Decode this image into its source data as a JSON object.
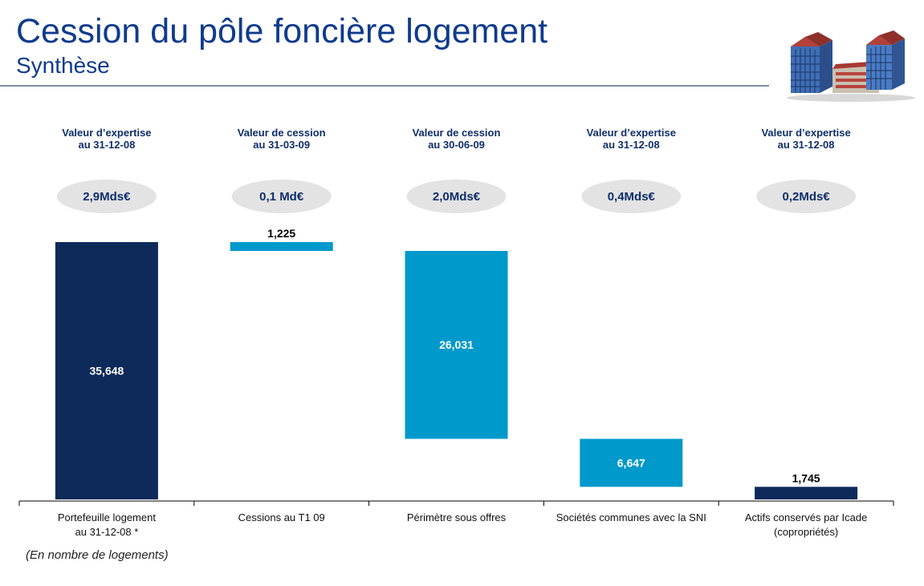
{
  "header": {
    "title": "Cession du pôle foncière logement",
    "subtitle": "Synthèse"
  },
  "footnote": "(En nombre de logements)",
  "colors": {
    "dark_navy": "#0d2a5a",
    "light_blue": "#0099cc",
    "pill_fill": "#e3e3e3",
    "title_blue": "#0f3b8c"
  },
  "icons": {
    "header_image": "building-illustration-icon"
  },
  "chart_data": {
    "type": "bar",
    "subtype": "waterfall",
    "unit": "nombre de logements",
    "ylim": [
      0,
      35648
    ],
    "grid": false,
    "categories": [
      [
        "Portefeuille logement",
        "au 31-12-08 *"
      ],
      [
        "Cessions au T1 09"
      ],
      [
        "Périmètre sous offres"
      ],
      [
        "Sociétés communes avec la SNI"
      ],
      [
        "Actifs conservés par Icade",
        "(copropriétés)"
      ]
    ],
    "column_headers": [
      [
        "Valeur d’expertise",
        "au 31-12-08"
      ],
      [
        "Valeur de cession",
        "au 31-03-09"
      ],
      [
        "Valeur de cession",
        "au 30-06-09"
      ],
      [
        "Valeur d’expertise",
        "au 31-12-08"
      ],
      [
        "Valeur d’expertise",
        "au 31-12-08"
      ]
    ],
    "pill_values": [
      "2,9Mds€",
      "0,1 Md€",
      "2,0Mds€",
      "0,4Mds€",
      "0,2Mds€"
    ],
    "bars": [
      {
        "start": 0,
        "end": 35648,
        "label": "35,648",
        "style": "dark_navy",
        "label_position": "inside"
      },
      {
        "start": 34423,
        "end": 35648,
        "label": "1,225",
        "style": "light_blue",
        "label_position": "above"
      },
      {
        "start": 8392,
        "end": 34423,
        "label": "26,031",
        "style": "light_blue",
        "label_position": "inside"
      },
      {
        "start": 1745,
        "end": 8392,
        "label": "6,647",
        "style": "light_blue",
        "label_position": "inside"
      },
      {
        "start": 0,
        "end": 1745,
        "label": "1,745",
        "style": "dark_navy",
        "label_position": "above"
      }
    ]
  }
}
